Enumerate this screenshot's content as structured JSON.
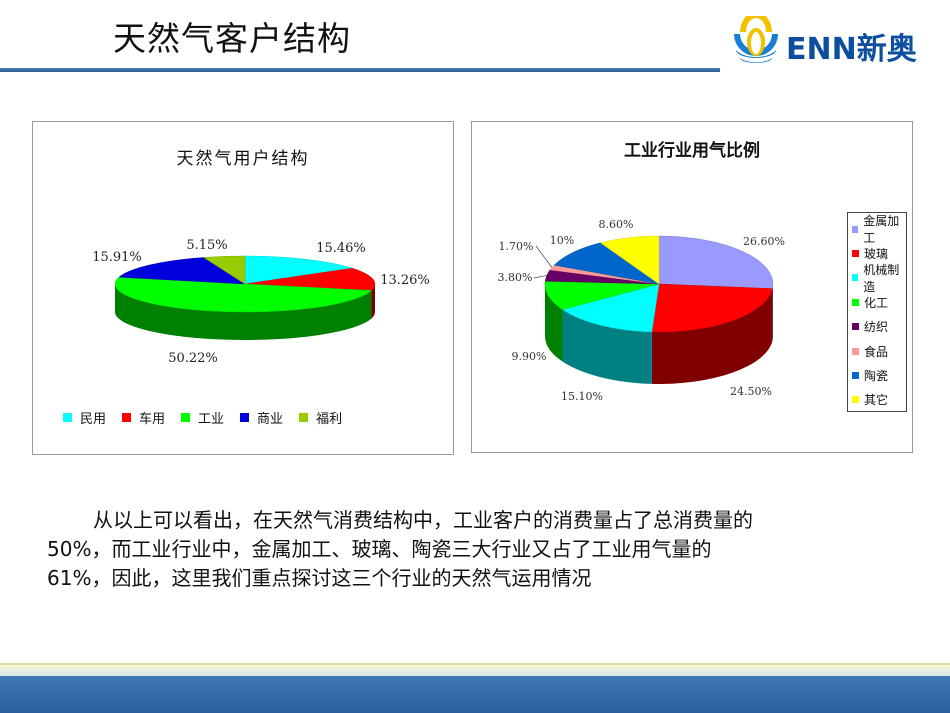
{
  "header": {
    "title": "天然气客户结构",
    "logo_text": "ENN新奥"
  },
  "chart_data": [
    {
      "type": "pie",
      "title": "天然气用户结构",
      "three_d": true,
      "categories": [
        "民用",
        "车用",
        "工业",
        "商业",
        "福利"
      ],
      "values": [
        15.46,
        13.26,
        50.22,
        15.91,
        5.15
      ],
      "labels": [
        "15.46%",
        "13.26%",
        "50.22%",
        "15.91%",
        "5.15%"
      ],
      "colors": [
        "#00ffff",
        "#ff0000",
        "#00ff00",
        "#0000dd",
        "#99cc00"
      ],
      "legend": "bottom"
    },
    {
      "type": "pie",
      "title": "工业行业用气比例",
      "three_d": true,
      "categories": [
        "金属加工",
        "玻璃",
        "机械制造",
        "化工",
        "纺织",
        "食品",
        "陶瓷",
        "其它"
      ],
      "values": [
        26.6,
        24.5,
        15.1,
        9.9,
        3.8,
        1.7,
        10,
        8.6
      ],
      "labels": [
        "26.60%",
        "24.50%",
        "15.10%",
        "9.90%",
        "3.80%",
        "1.70%",
        "10%",
        "8.60%"
      ],
      "colors": [
        "#9999ff",
        "#ff0000",
        "#00ffff",
        "#00ff00",
        "#660066",
        "#ff9999",
        "#0066cc",
        "#ffff00"
      ],
      "legend": "right"
    }
  ],
  "paragraph": {
    "line1": "从以上可以看出，在天然气消费结构中，工业客户的消费量占了总消费量的",
    "line2": "50%，而工业行业中，金属加工、玻璃、陶瓷三大行业又占了工业用气量的",
    "line3": "61%，因此，这里我们重点探讨这三个行业的天然气运用情况"
  }
}
